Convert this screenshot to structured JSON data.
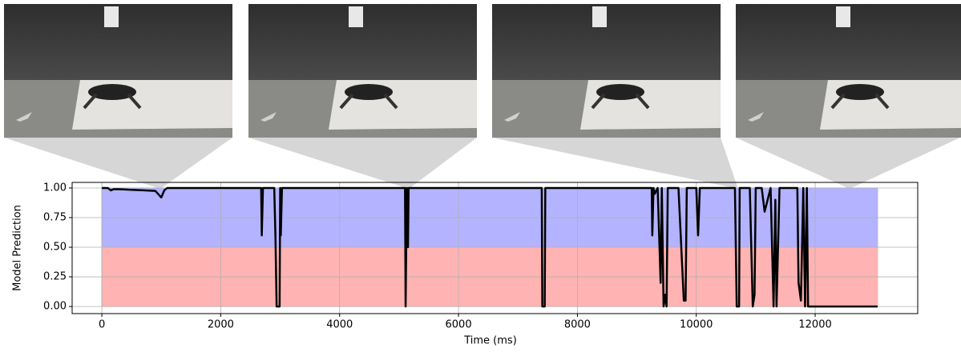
{
  "chart_data": {
    "type": "line",
    "xlabel": "Time (ms)",
    "ylabel": "Model Prediction",
    "x": [
      0,
      100,
      150,
      200,
      300,
      500,
      700,
      900,
      1000,
      1050,
      1100,
      2680,
      2690,
      2710,
      2900,
      2920,
      2940,
      2990,
      3000,
      3010,
      3030,
      5100,
      5110,
      5130,
      5150,
      5160,
      7400,
      7410,
      7450,
      7460,
      9250,
      9260,
      9280,
      9300,
      9350,
      9400,
      9420,
      9450,
      9480,
      9500,
      9520,
      9700,
      9790,
      9820,
      9840,
      10000,
      10030,
      10060,
      10650,
      10680,
      10720,
      10730,
      10900,
      10950,
      10980,
      11000,
      11100,
      11150,
      11200,
      11250,
      11300,
      11330,
      11350,
      11400,
      11700,
      11720,
      11760,
      11800,
      11830,
      11860,
      11880,
      12000,
      13050
    ],
    "values": [
      1,
      1,
      0.98,
      0.99,
      0.99,
      0.985,
      0.98,
      0.975,
      0.92,
      0.98,
      1,
      1,
      0.6,
      1,
      1,
      0.6,
      0,
      0,
      1,
      0.6,
      1,
      1,
      0,
      1,
      0.5,
      1,
      1,
      0,
      0,
      1,
      1,
      0.6,
      1,
      0.95,
      1,
      0.2,
      1,
      0,
      0.1,
      0,
      1,
      1,
      0.05,
      0.05,
      1,
      1,
      0.6,
      1,
      1,
      0,
      0,
      1,
      1,
      0,
      0.1,
      1,
      1,
      0.8,
      0.9,
      1,
      0,
      0.9,
      0,
      1,
      1,
      0.2,
      0.05,
      1,
      0,
      1,
      0,
      0,
      0
    ],
    "color": "#000000",
    "bands": [
      {
        "from": 0.5,
        "to": 1,
        "color": "#b3b3ff"
      },
      {
        "from": 0,
        "to": 0.5,
        "color": "#ffb3b3"
      }
    ],
    "band_xlim": [
      0,
      13050
    ],
    "xlim": [
      -500,
      13725
    ],
    "ylim": [
      -0.06,
      1.047
    ],
    "xticks": [
      0,
      2000,
      4000,
      6000,
      8000,
      10000,
      12000
    ],
    "yticks": [
      {
        "value": 0,
        "label": "0.00"
      },
      {
        "value": 0.25,
        "label": "0.25"
      },
      {
        "value": 0.5,
        "label": "0.50"
      },
      {
        "value": 0.75,
        "label": "0.75"
      },
      {
        "value": 1,
        "label": "1.00"
      }
    ],
    "grid": true
  }
}
